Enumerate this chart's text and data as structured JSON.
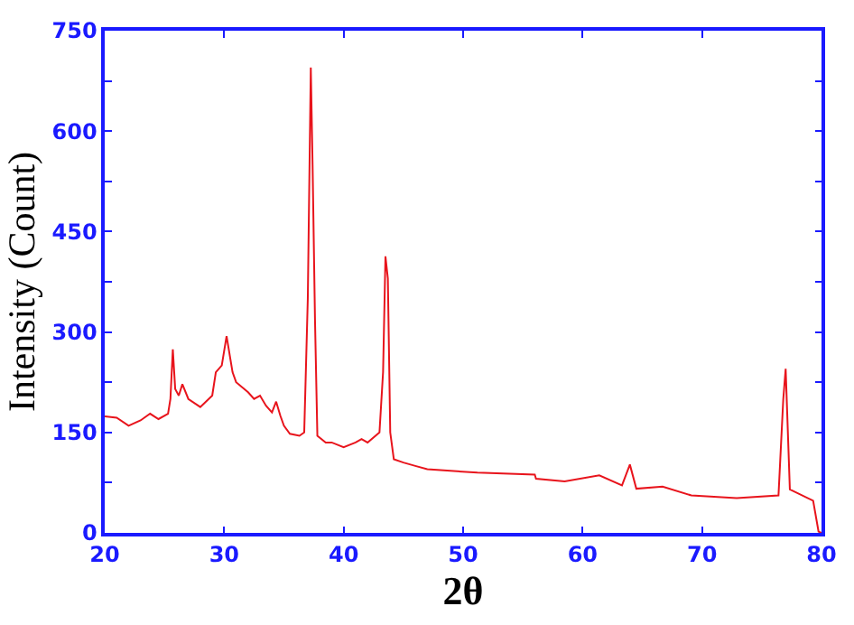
{
  "chart_data": {
    "type": "line",
    "xlabel": "2θ",
    "ylabel": "Intensity (Count)",
    "xlim": [
      20,
      80
    ],
    "ylim": [
      0,
      750
    ],
    "xticks": [
      20,
      30,
      40,
      50,
      60,
      70,
      80
    ],
    "yticks": [
      0,
      {
        "value": 75,
        "label": null
      },
      150,
      {
        "value": 225,
        "label": null
      },
      300,
      {
        "value": 375,
        "label": null
      },
      450,
      {
        "value": 525,
        "label": null
      },
      600,
      {
        "value": 675,
        "label": null
      },
      750
    ],
    "marker": "none",
    "line_style": "solid",
    "series": [
      {
        "color": "#e8141c",
        "x": [
          20,
          21,
          22,
          23,
          23.8,
          24.5,
          25.3,
          25.5,
          25.7,
          25.9,
          26.2,
          26.5,
          27,
          28,
          29,
          29.3,
          29.8,
          30.2,
          30.7,
          31,
          32,
          32.5,
          33,
          33.5,
          34,
          34.35,
          34.7,
          35,
          35.5,
          36.3,
          36.7,
          37.0,
          37.25,
          37.4,
          37.6,
          37.8,
          38.5,
          39,
          40,
          41,
          41.5,
          42,
          43,
          43.3,
          43.5,
          43.7,
          43.9,
          44.2,
          45,
          46,
          47,
          51.2,
          56,
          56.1,
          58.5,
          61.4,
          63.3,
          63.96,
          64.5,
          66.7,
          69.1,
          72.9,
          76.4,
          76.8,
          77.0,
          77.35,
          79.3,
          79.75,
          80
        ],
        "values": [
          174,
          172,
          160,
          168,
          178,
          170,
          178,
          200,
          274,
          215,
          205,
          222,
          200,
          188,
          205,
          240,
          250,
          294,
          240,
          225,
          210,
          200,
          205,
          190,
          180,
          196,
          175,
          160,
          148,
          145,
          150,
          350,
          695,
          550,
          320,
          145,
          135,
          135,
          128,
          135,
          140,
          135,
          150,
          240,
          413,
          380,
          150,
          110,
          105,
          100,
          95,
          90,
          87,
          81,
          77,
          86,
          71,
          102,
          66,
          69,
          56,
          52,
          56,
          200,
          245,
          65,
          48,
          2,
          0
        ]
      }
    ]
  }
}
